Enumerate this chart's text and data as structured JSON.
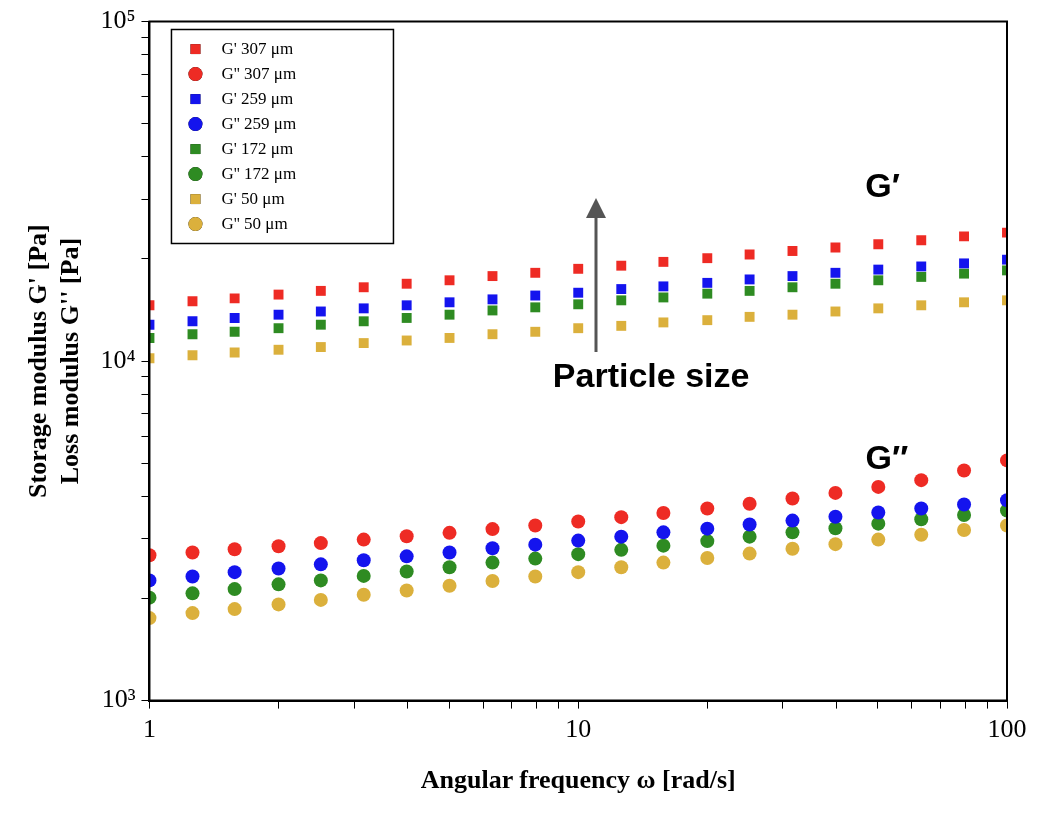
{
  "chart_data": {
    "type": "scatter",
    "xlabel": "Angular frequency ω [rad/s]",
    "ylabel": "Storage modulus G' [Pa]\nLoss modulus G'' [Pa]",
    "log": "xy",
    "grid": false,
    "legend": "top left",
    "xlim": [
      1,
      100
    ],
    "xticks": [
      1,
      {
        "value": 2,
        "label": null
      },
      {
        "value": 3,
        "label": null
      },
      {
        "value": 4,
        "label": null
      },
      {
        "value": 5,
        "label": null
      },
      {
        "value": 6,
        "label": null
      },
      {
        "value": 7,
        "label": null
      },
      {
        "value": 8,
        "label": null
      },
      {
        "value": 9,
        "label": null
      },
      10,
      {
        "value": 20,
        "label": null
      },
      {
        "value": 30,
        "label": null
      },
      {
        "value": 40,
        "label": null
      },
      {
        "value": 50,
        "label": null
      },
      {
        "value": 60,
        "label": null
      },
      {
        "value": 70,
        "label": null
      },
      {
        "value": 80,
        "label": null
      },
      {
        "value": 90,
        "label": null
      },
      100
    ],
    "ylim": [
      1000,
      100000
    ],
    "yticks": [
      {
        "value": 1000,
        "label": "10³"
      },
      {
        "value": 2000,
        "label": null
      },
      {
        "value": 3000,
        "label": null
      },
      {
        "value": 4000,
        "label": null
      },
      {
        "value": 5000,
        "label": null
      },
      {
        "value": 6000,
        "label": null
      },
      {
        "value": 7000,
        "label": null
      },
      {
        "value": 8000,
        "label": null
      },
      {
        "value": 9000,
        "label": null
      },
      {
        "value": 10000,
        "label": "10⁴"
      },
      {
        "value": 20000,
        "label": null
      },
      {
        "value": 30000,
        "label": null
      },
      {
        "value": 40000,
        "label": null
      },
      {
        "value": 50000,
        "label": null
      },
      {
        "value": 60000,
        "label": null
      },
      {
        "value": 70000,
        "label": null
      },
      {
        "value": 80000,
        "label": null
      },
      {
        "value": 90000,
        "label": null
      },
      {
        "value": 100000,
        "label": "10⁵"
      }
    ],
    "x": [
      1,
      1.26,
      1.58,
      2,
      2.51,
      3.16,
      3.98,
      5.01,
      6.31,
      7.94,
      10,
      12.6,
      15.8,
      20,
      25.1,
      31.6,
      39.8,
      50.1,
      63.1,
      79.4,
      100
    ],
    "series": [
      {
        "name": "G' 307 μm",
        "color": "#ee2b24",
        "marker": "square",
        "values": [
          14600,
          15000,
          15300,
          15700,
          16100,
          16500,
          16900,
          17300,
          17800,
          18200,
          18700,
          19100,
          19600,
          20100,
          20600,
          21100,
          21600,
          22100,
          22700,
          23300,
          23900
        ]
      },
      {
        "name": "G'' 307 μm",
        "color": "#ee2b24",
        "marker": "circle",
        "values": [
          2680,
          2730,
          2790,
          2850,
          2910,
          2980,
          3050,
          3120,
          3200,
          3280,
          3370,
          3470,
          3570,
          3680,
          3800,
          3940,
          4090,
          4260,
          4460,
          4760,
          5100
        ]
      },
      {
        "name": "G' 259 μm",
        "color": "#1414ee",
        "marker": "square",
        "values": [
          12800,
          13100,
          13400,
          13700,
          14000,
          14300,
          14600,
          14900,
          15200,
          15600,
          15900,
          16300,
          16600,
          17000,
          17400,
          17800,
          18200,
          18600,
          19000,
          19400,
          19900
        ]
      },
      {
        "name": "G'' 259 μm",
        "color": "#1414ee",
        "marker": "circle",
        "values": [
          2260,
          2320,
          2390,
          2450,
          2520,
          2590,
          2660,
          2730,
          2810,
          2880,
          2960,
          3040,
          3130,
          3210,
          3300,
          3390,
          3480,
          3580,
          3680,
          3780,
          3890
        ]
      },
      {
        "name": "G' 172 μm",
        "color": "#2e8b22",
        "marker": "square",
        "values": [
          11700,
          12000,
          12200,
          12500,
          12800,
          13100,
          13400,
          13700,
          14100,
          14400,
          14700,
          15100,
          15400,
          15800,
          16100,
          16500,
          16900,
          17300,
          17700,
          18100,
          18500
        ]
      },
      {
        "name": "G'' 172 μm",
        "color": "#2e8b22",
        "marker": "circle",
        "values": [
          2010,
          2070,
          2130,
          2200,
          2260,
          2330,
          2400,
          2470,
          2550,
          2620,
          2700,
          2780,
          2860,
          2950,
          3040,
          3130,
          3220,
          3320,
          3420,
          3520,
          3630
        ]
      },
      {
        "name": "G' 50 μm",
        "color": "#dbb03c",
        "marker": "square",
        "values": [
          10200,
          10400,
          10600,
          10800,
          11000,
          11300,
          11500,
          11700,
          12000,
          12200,
          12500,
          12700,
          13000,
          13200,
          13500,
          13700,
          14000,
          14300,
          14600,
          14900,
          15100
        ]
      },
      {
        "name": "G'' 50 μm",
        "color": "#dbb03c",
        "marker": "circle",
        "values": [
          1750,
          1810,
          1860,
          1920,
          1980,
          2050,
          2110,
          2180,
          2250,
          2320,
          2390,
          2470,
          2550,
          2630,
          2710,
          2800,
          2890,
          2980,
          3080,
          3180,
          3280
        ]
      }
    ],
    "annotations": [
      "G′",
      "G″",
      "Particle size"
    ]
  }
}
